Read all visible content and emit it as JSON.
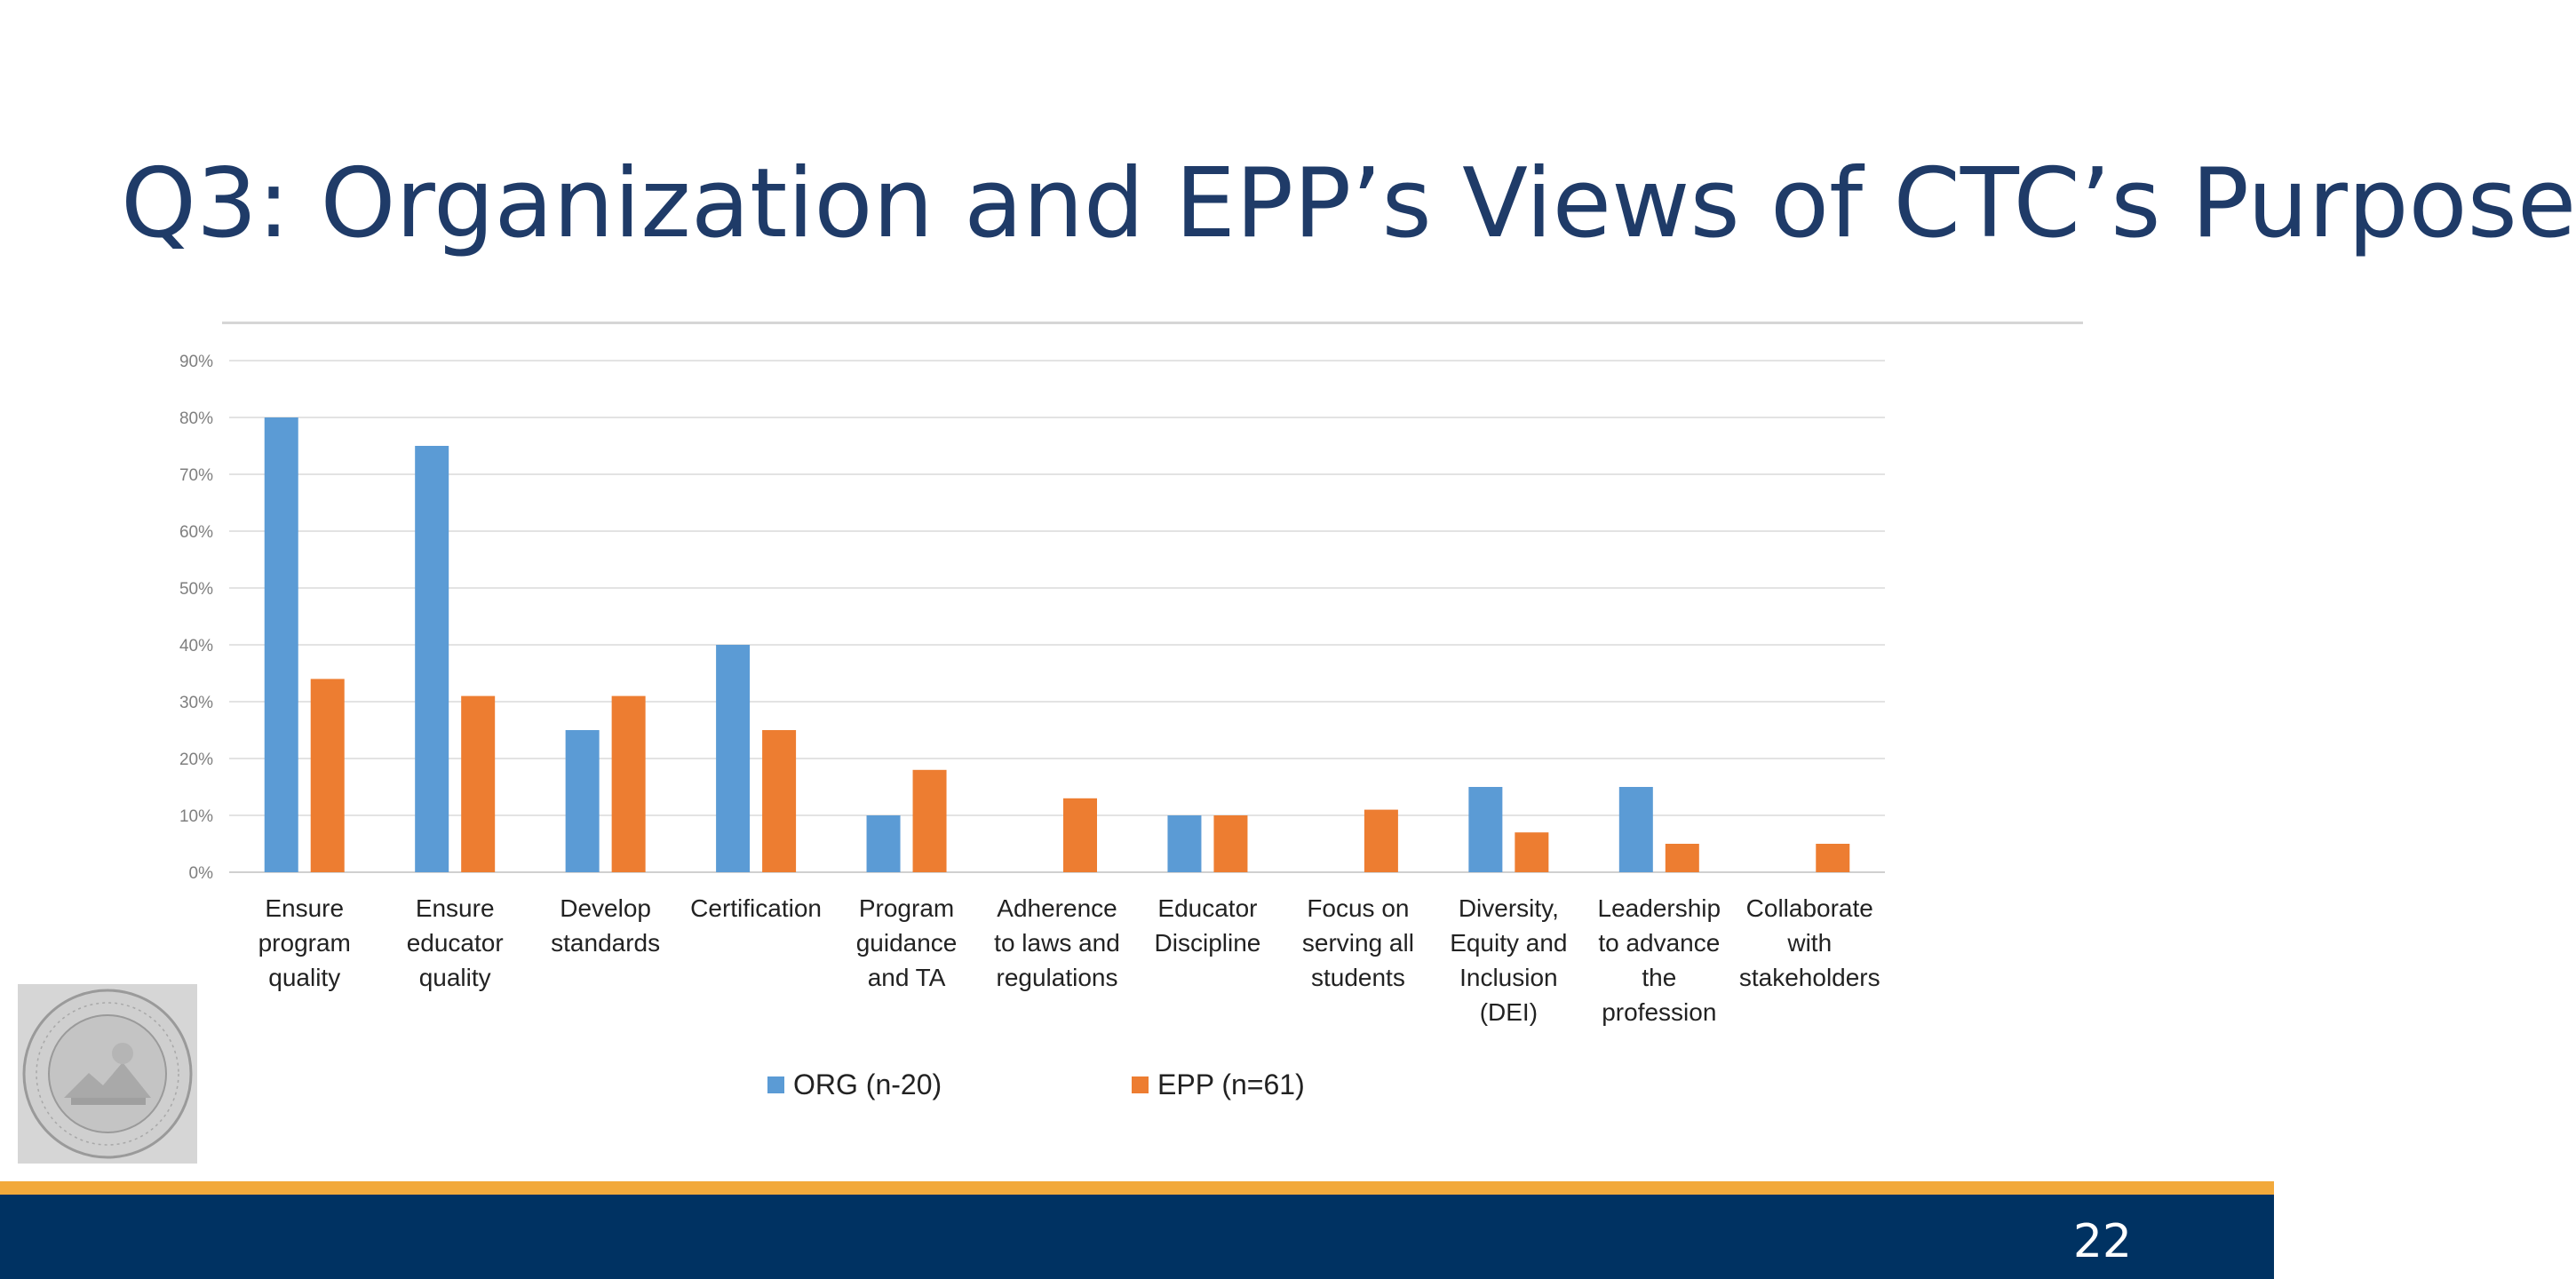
{
  "slide": {
    "title": "Q3: Organization and EPP’s Views of CTC’s Purpose",
    "page_number": "22",
    "footer_colors": {
      "gold": "#f2a93b",
      "navy": "#003262"
    },
    "title_color": "#1f3b68"
  },
  "chart_data": {
    "type": "bar",
    "title": "",
    "xlabel": "",
    "ylabel": "",
    "ylim": [
      0,
      90
    ],
    "y_ticks": [
      "0%",
      "10%",
      "20%",
      "30%",
      "40%",
      "50%",
      "60%",
      "70%",
      "80%",
      "90%"
    ],
    "grid": true,
    "legend_position": "bottom",
    "categories": [
      [
        "Ensure",
        "program",
        "quality"
      ],
      [
        "Ensure",
        "educator",
        "quality"
      ],
      [
        "Develop",
        "standards"
      ],
      [
        "Certification"
      ],
      [
        "Program",
        "guidance",
        "and TA"
      ],
      [
        "Adherence",
        "to laws and",
        "regulations"
      ],
      [
        "Educator",
        "Discipline"
      ],
      [
        "Focus on",
        "serving all",
        "students"
      ],
      [
        "Diversity,",
        "Equity and",
        "Inclusion",
        "(DEI)"
      ],
      [
        "Leadership",
        "to advance",
        "the",
        "profession"
      ],
      [
        "Collaborate",
        "with",
        "stakeholders"
      ]
    ],
    "series": [
      {
        "name": "ORG (n-20)",
        "color": "#5b9bd5",
        "values": [
          80,
          75,
          25,
          40,
          10,
          0,
          10,
          0,
          15,
          15,
          0
        ]
      },
      {
        "name": "EPP (n=61)",
        "color": "#ed7d31",
        "values": [
          34,
          31,
          31,
          25,
          18,
          13,
          10,
          11,
          7,
          5,
          5
        ]
      }
    ]
  },
  "seal": {
    "icon": "ctc-seal-icon"
  }
}
